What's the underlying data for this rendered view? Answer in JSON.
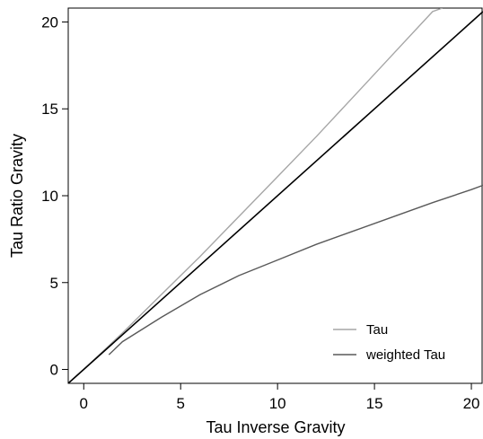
{
  "chart_data": {
    "type": "line",
    "xlabel": "Tau Inverse Gravity",
    "ylabel": "Tau Ratio Gravity",
    "xlim": [
      -0.8,
      20.6
    ],
    "ylim": [
      -0.8,
      20.8
    ],
    "xticks": [
      0,
      5,
      10,
      15,
      20
    ],
    "yticks": [
      0,
      5,
      10,
      15,
      20
    ],
    "grid": false,
    "legend_position": "bottom-right",
    "series": [
      {
        "name": "Tau",
        "color": "#a6a6a6",
        "x": [
          -0.8,
          0,
          2,
          4,
          6,
          8,
          10,
          12,
          14,
          16,
          18,
          18.5
        ],
        "y": [
          -0.8,
          0,
          2.1,
          4.3,
          6.5,
          8.8,
          11.1,
          13.4,
          15.8,
          18.2,
          20.6,
          20.8
        ]
      },
      {
        "name": "",
        "color": "#000000",
        "x": [
          -0.8,
          20.6
        ],
        "y": [
          -0.8,
          20.6
        ]
      },
      {
        "name": "weighted Tau",
        "color": "#595959",
        "x": [
          1.3,
          2,
          4,
          6,
          8,
          10,
          12,
          14,
          16,
          18,
          20,
          20.6
        ],
        "y": [
          0.85,
          1.6,
          3.0,
          4.3,
          5.4,
          6.3,
          7.2,
          8.0,
          8.8,
          9.6,
          10.35,
          10.6
        ]
      }
    ]
  }
}
